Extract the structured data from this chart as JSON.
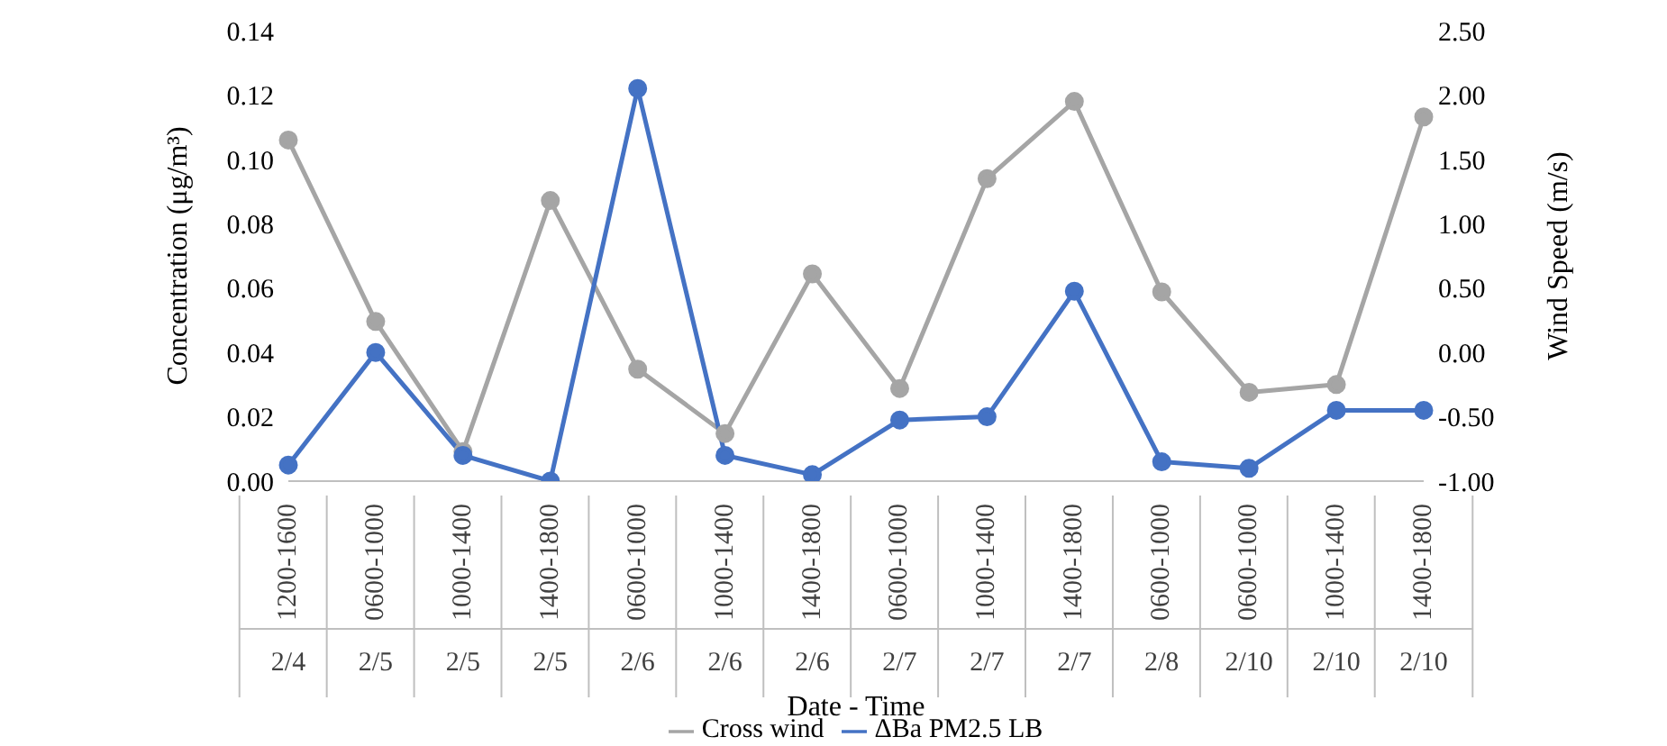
{
  "chart_data": {
    "type": "line",
    "xlabel": "Date - Time",
    "ylabel": "Concentration (μg/m³)",
    "y2label": "Wind Speed (m/s)",
    "categories": [
      "1200-1600 2/4",
      "0600-1000 2/5",
      "1000-1400 2/5",
      "1400-1800 2/5",
      "0600-1000 2/6",
      "1000-1400 2/6",
      "1400-1800 2/6",
      "0600-1000 2/7",
      "1000-1400 2/7",
      "1400-1800 2/7",
      "0600-1000 2/8",
      "0600-1000 2/10",
      "1000-1400 2/10",
      "1400-1800 2/10"
    ],
    "series": [
      {
        "name": "ΔBa PM2.5 LB",
        "color": "#4472c4",
        "values": [
          0.005,
          0.04,
          0.008,
          0.0,
          0.122,
          0.008,
          0.002,
          0.019,
          0.02,
          0.059,
          0.006,
          0.004,
          0.022,
          0.022
        ]
      },
      {
        "name": "Cross wind",
        "color": "#a5a5a5",
        "axis": "y2",
        "values": [
          1.65,
          0.24,
          -0.77,
          1.18,
          -0.13,
          -0.63,
          0.61,
          -0.28,
          1.35,
          1.95,
          0.47,
          -0.31,
          -0.25,
          1.83
        ]
      }
    ],
    "ylim": [
      0,
      0.14
    ],
    "yticks": [
      {
        "value": 0,
        "label": "0.00"
      },
      {
        "value": 0.02,
        "label": "0.02"
      },
      {
        "value": 0.04,
        "label": "0.04"
      },
      {
        "value": 0.06,
        "label": "0.06"
      },
      {
        "value": 0.08,
        "label": "0.08"
      },
      {
        "value": 0.1,
        "label": "0.10"
      },
      {
        "value": 0.12,
        "label": "0.12"
      },
      {
        "value": 0.14,
        "label": "0.14"
      }
    ],
    "y2lim": [
      -1,
      2.5
    ],
    "y2ticks": [
      {
        "value": -1,
        "label": "-1.00"
      },
      {
        "value": -0.5,
        "label": "-0.50"
      },
      {
        "value": 0,
        "label": "0.00"
      },
      {
        "value": 0.5,
        "label": "0.50"
      },
      {
        "value": 1,
        "label": "1.00"
      },
      {
        "value": 1.5,
        "label": "1.50"
      },
      {
        "value": 2,
        "label": "2.00"
      },
      {
        "value": 2.5,
        "label": "2.50"
      }
    ],
    "grid": false,
    "legend": "bottom",
    "marker": "circle"
  }
}
